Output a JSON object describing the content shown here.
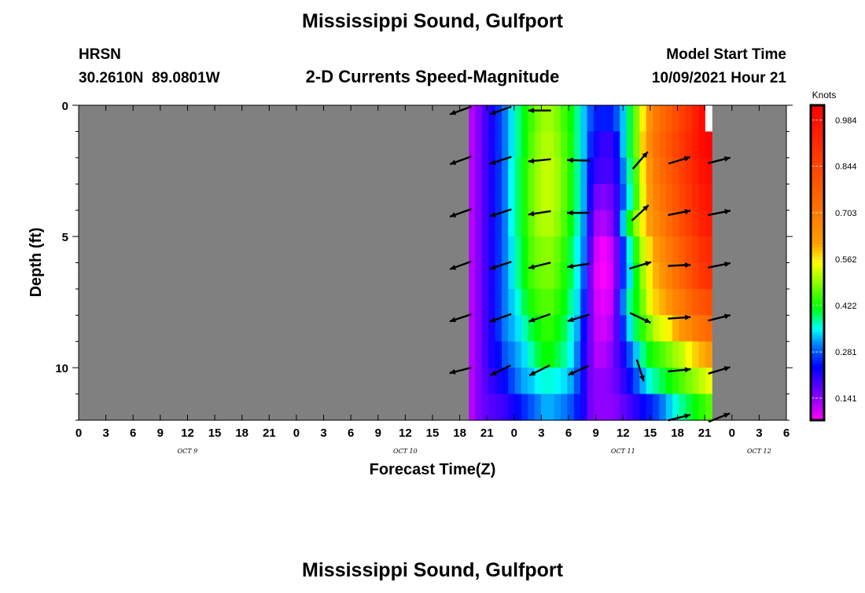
{
  "header": {
    "title": "Mississippi Sound, Gulfport",
    "station": "HRSN",
    "coords": "30.2610N  89.0801W",
    "subtitle": "2-D Currents Speed-Magnitude",
    "model_label": "Model Start Time",
    "model_time": "10/09/2021 Hour 21"
  },
  "footer": {
    "title": "Mississippi Sound, Gulfport"
  },
  "chart_data": {
    "type": "heatmap",
    "title": "2-D Currents Speed-Magnitude",
    "xlabel": "Forecast Time(Z)",
    "ylabel": "Depth (ft)",
    "xlim_hours": [
      0,
      78
    ],
    "ylim_ft": [
      0,
      12
    ],
    "x_tick_labels": [
      "0",
      "3",
      "6",
      "9",
      "12",
      "15",
      "18",
      "21",
      "0",
      "3",
      "6",
      "9",
      "12",
      "15",
      "18",
      "21",
      "0",
      "3",
      "6",
      "9",
      "12",
      "15",
      "18",
      "21",
      "0",
      "3",
      "6"
    ],
    "date_labels": [
      {
        "hour": 12,
        "label": "OCT 9"
      },
      {
        "hour": 36,
        "label": "OCT 10"
      },
      {
        "hour": 60,
        "label": "OCT 11"
      },
      {
        "hour": 75,
        "label": "OCT 12"
      }
    ],
    "y_tick_labels": [
      {
        "value": 0,
        "label": "0"
      },
      {
        "value": 5,
        "label": "5"
      },
      {
        "value": 10,
        "label": "10"
      }
    ],
    "background_color": "#808080",
    "colorbar": {
      "label": "Knots",
      "range": [
        0.074,
        1.029
      ],
      "ticks": [
        "0.141",
        "0.281",
        "0.422",
        "0.562",
        "0.703",
        "0.844",
        "0.984"
      ],
      "tick_values": [
        0.141,
        0.281,
        0.422,
        0.562,
        0.703,
        0.844,
        0.984
      ]
    },
    "grid": {
      "time_start_hour": 43.0,
      "time_step_hour": 0.724,
      "depth_step_ft": 1,
      "speed_knots": [
        [
          0.12,
          0.15,
          0.19,
          0.22,
          0.26,
          0.3,
          0.34,
          0.38,
          0.42,
          0.45,
          0.48,
          0.5,
          0.5,
          0.48,
          0.45,
          0.42,
          0.38,
          0.33,
          0.28,
          0.25,
          0.25,
          0.25,
          0.28,
          0.33,
          0.4,
          0.48,
          0.56,
          0.64,
          0.7,
          0.74,
          0.78,
          0.82,
          0.86,
          0.9,
          0.95,
          1.0,
          null
        ],
        [
          0.12,
          0.15,
          0.19,
          0.22,
          0.26,
          0.3,
          0.34,
          0.38,
          0.42,
          0.46,
          0.49,
          0.51,
          0.51,
          0.49,
          0.46,
          0.43,
          0.38,
          0.33,
          0.26,
          0.22,
          0.2,
          0.2,
          0.24,
          0.33,
          0.4,
          0.48,
          0.58,
          0.66,
          0.72,
          0.76,
          0.8,
          0.84,
          0.88,
          0.92,
          0.96,
          1.0,
          1.02
        ],
        [
          0.12,
          0.15,
          0.19,
          0.22,
          0.26,
          0.3,
          0.35,
          0.39,
          0.43,
          0.47,
          0.5,
          0.52,
          0.52,
          0.5,
          0.47,
          0.43,
          0.38,
          0.32,
          0.24,
          0.2,
          0.19,
          0.19,
          0.22,
          0.3,
          0.38,
          0.46,
          0.56,
          0.64,
          0.7,
          0.74,
          0.78,
          0.82,
          0.86,
          0.9,
          0.94,
          0.98,
          1.0
        ],
        [
          0.12,
          0.15,
          0.19,
          0.22,
          0.26,
          0.3,
          0.35,
          0.39,
          0.43,
          0.47,
          0.5,
          0.52,
          0.52,
          0.5,
          0.47,
          0.43,
          0.38,
          0.32,
          0.22,
          0.16,
          0.15,
          0.16,
          0.2,
          0.28,
          0.36,
          0.45,
          0.54,
          0.62,
          0.68,
          0.72,
          0.76,
          0.8,
          0.84,
          0.88,
          0.92,
          0.96,
          0.98
        ],
        [
          0.12,
          0.15,
          0.19,
          0.22,
          0.26,
          0.3,
          0.35,
          0.39,
          0.43,
          0.47,
          0.5,
          0.51,
          0.51,
          0.49,
          0.46,
          0.42,
          0.37,
          0.31,
          0.2,
          0.13,
          0.12,
          0.14,
          0.2,
          0.33,
          0.42,
          0.5,
          0.56,
          0.62,
          0.66,
          0.7,
          0.74,
          0.78,
          0.82,
          0.86,
          0.9,
          0.94,
          0.96
        ],
        [
          0.12,
          0.15,
          0.19,
          0.22,
          0.26,
          0.3,
          0.34,
          0.38,
          0.42,
          0.46,
          0.48,
          0.49,
          0.49,
          0.47,
          0.44,
          0.4,
          0.35,
          0.3,
          0.18,
          0.1,
          0.08,
          0.1,
          0.16,
          0.26,
          0.36,
          0.44,
          0.52,
          0.57,
          0.62,
          0.66,
          0.7,
          0.74,
          0.78,
          0.82,
          0.86,
          0.9,
          0.92
        ],
        [
          0.12,
          0.15,
          0.19,
          0.22,
          0.26,
          0.3,
          0.34,
          0.38,
          0.42,
          0.45,
          0.47,
          0.48,
          0.48,
          0.46,
          0.43,
          0.4,
          0.35,
          0.28,
          0.16,
          0.09,
          0.07,
          0.09,
          0.16,
          0.26,
          0.34,
          0.42,
          0.5,
          0.56,
          0.6,
          0.64,
          0.68,
          0.72,
          0.76,
          0.8,
          0.84,
          0.88,
          0.9
        ],
        [
          0.12,
          0.15,
          0.19,
          0.22,
          0.26,
          0.3,
          0.33,
          0.36,
          0.4,
          0.43,
          0.45,
          0.46,
          0.46,
          0.44,
          0.42,
          0.38,
          0.34,
          0.26,
          0.16,
          0.1,
          0.09,
          0.1,
          0.18,
          0.3,
          0.38,
          0.42,
          0.48,
          0.54,
          0.58,
          0.6,
          0.64,
          0.68,
          0.7,
          0.74,
          0.78,
          0.8,
          0.82
        ],
        [
          0.12,
          0.15,
          0.19,
          0.22,
          0.26,
          0.3,
          0.32,
          0.34,
          0.37,
          0.4,
          0.42,
          0.44,
          0.44,
          0.42,
          0.4,
          0.36,
          0.32,
          0.24,
          0.16,
          0.11,
          0.1,
          0.12,
          0.18,
          0.26,
          0.34,
          0.4,
          0.44,
          0.48,
          0.52,
          0.54,
          0.56,
          0.6,
          0.64,
          0.66,
          0.7,
          0.72,
          0.74
        ],
        [
          0.12,
          0.15,
          0.19,
          0.22,
          0.24,
          0.28,
          0.3,
          0.32,
          0.34,
          0.37,
          0.4,
          0.42,
          0.42,
          0.4,
          0.38,
          0.35,
          0.3,
          0.22,
          0.16,
          0.12,
          0.12,
          0.14,
          0.18,
          0.22,
          0.28,
          0.33,
          0.38,
          0.42,
          0.44,
          0.46,
          0.48,
          0.5,
          0.52,
          0.55,
          0.58,
          0.6,
          0.62
        ],
        [
          0.12,
          0.15,
          0.18,
          0.2,
          0.22,
          0.24,
          0.27,
          0.3,
          0.32,
          0.33,
          0.35,
          0.36,
          0.36,
          0.35,
          0.34,
          0.32,
          0.28,
          0.22,
          0.16,
          0.14,
          0.14,
          0.15,
          0.17,
          0.2,
          0.24,
          0.28,
          0.32,
          0.36,
          0.38,
          0.4,
          0.42,
          0.44,
          0.46,
          0.48,
          0.5,
          0.52,
          0.54
        ],
        [
          0.12,
          0.15,
          0.17,
          0.18,
          0.19,
          0.2,
          0.22,
          0.24,
          0.26,
          0.28,
          0.3,
          0.32,
          0.32,
          0.31,
          0.3,
          0.28,
          0.25,
          0.22,
          0.16,
          0.14,
          0.14,
          0.14,
          0.15,
          0.17,
          0.19,
          0.21,
          0.23,
          0.25,
          0.27,
          0.3,
          0.33,
          0.36,
          0.38,
          0.4,
          0.42,
          0.44,
          0.46
        ]
      ]
    },
    "vectors": [
      {
        "t": 42.1,
        "d": 0.2,
        "u": -1,
        "v": -0.36
      },
      {
        "t": 42.1,
        "d": 2.1,
        "u": -1,
        "v": -0.36
      },
      {
        "t": 42.1,
        "d": 4.1,
        "u": -1,
        "v": -0.36
      },
      {
        "t": 42.1,
        "d": 6.1,
        "u": -1,
        "v": -0.36
      },
      {
        "t": 42.1,
        "d": 8.1,
        "u": -1,
        "v": -0.33
      },
      {
        "t": 42.1,
        "d": 10.1,
        "u": -1,
        "v": -0.25
      },
      {
        "t": 46.5,
        "d": 0.2,
        "u": -1,
        "v": -0.36
      },
      {
        "t": 46.5,
        "d": 2.1,
        "u": -1,
        "v": -0.33
      },
      {
        "t": 46.5,
        "d": 4.1,
        "u": -1,
        "v": -0.33
      },
      {
        "t": 46.5,
        "d": 6.1,
        "u": -1,
        "v": -0.33
      },
      {
        "t": 46.5,
        "d": 8.1,
        "u": -1,
        "v": -0.36
      },
      {
        "t": 46.5,
        "d": 10.1,
        "u": -1,
        "v": -0.5
      },
      {
        "t": 50.8,
        "d": 0.2,
        "u": -1,
        "v": 0
      },
      {
        "t": 50.8,
        "d": 2.1,
        "u": -1,
        "v": -0.1
      },
      {
        "t": 50.8,
        "d": 4.1,
        "u": -1,
        "v": -0.15
      },
      {
        "t": 50.8,
        "d": 6.1,
        "u": -1,
        "v": -0.25
      },
      {
        "t": 50.8,
        "d": 8.1,
        "u": -1,
        "v": -0.35
      },
      {
        "t": 50.8,
        "d": 10.1,
        "u": -1,
        "v": -0.5
      },
      {
        "t": 55.1,
        "d": 2.1,
        "u": -1,
        "v": 0.03
      },
      {
        "t": 55.1,
        "d": 4.1,
        "u": -1,
        "v": 0
      },
      {
        "t": 55.1,
        "d": 6.1,
        "u": -1,
        "v": -0.15
      },
      {
        "t": 55.1,
        "d": 8.1,
        "u": -1,
        "v": -0.3
      },
      {
        "t": 55.1,
        "d": 10.1,
        "u": -1,
        "v": -0.45
      },
      {
        "t": 61.9,
        "d": 2.1,
        "u": 0.7,
        "v": 0.8
      },
      {
        "t": 61.9,
        "d": 4.1,
        "u": 0.75,
        "v": 0.7
      },
      {
        "t": 61.9,
        "d": 6.1,
        "u": 1,
        "v": 0.3
      },
      {
        "t": 61.9,
        "d": 8.1,
        "u": 0.95,
        "v": -0.45
      },
      {
        "t": 61.9,
        "d": 10.1,
        "u": 0.3,
        "v": -0.95
      },
      {
        "t": 66.2,
        "d": 2.1,
        "u": 1,
        "v": 0.3
      },
      {
        "t": 66.2,
        "d": 4.1,
        "u": 1,
        "v": 0.2
      },
      {
        "t": 66.2,
        "d": 6.1,
        "u": 1,
        "v": 0.05
      },
      {
        "t": 66.2,
        "d": 8.1,
        "u": 1,
        "v": 0.07
      },
      {
        "t": 66.2,
        "d": 10.1,
        "u": 1,
        "v": 0.1
      },
      {
        "t": 66.2,
        "d": 11.9,
        "u": 1,
        "v": 0.25
      },
      {
        "t": 70.6,
        "d": 2.1,
        "u": 1,
        "v": 0.25
      },
      {
        "t": 70.6,
        "d": 4.1,
        "u": 1,
        "v": 0.2
      },
      {
        "t": 70.6,
        "d": 6.1,
        "u": 1,
        "v": 0.2
      },
      {
        "t": 70.6,
        "d": 8.1,
        "u": 1,
        "v": 0.25
      },
      {
        "t": 70.6,
        "d": 10.1,
        "u": 1,
        "v": 0.3
      },
      {
        "t": 70.6,
        "d": 11.9,
        "u": 1,
        "v": 0.4
      }
    ]
  }
}
